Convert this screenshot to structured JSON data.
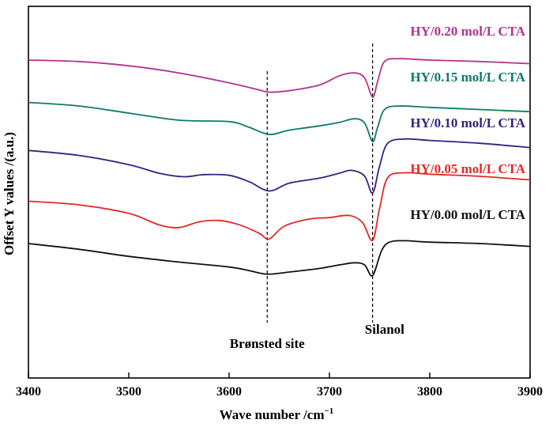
{
  "chart_data": {
    "type": "line",
    "xlabel": "Wave number /cm",
    "xlabel_sup": "−1",
    "ylabel": "Offset Y values /(a.u.)",
    "xlim": [
      3400,
      3900
    ],
    "xticks": [
      "3400",
      "3500",
      "3600",
      "3700",
      "3800",
      "3900"
    ],
    "grid": false,
    "annotations": [
      {
        "text": "Brønsted site",
        "x": 3638
      },
      {
        "text": "Silanol",
        "x": 3743
      }
    ],
    "series": [
      {
        "name": "HY/0.20 mol/L CTA",
        "color": "#b3348f",
        "offset": 4,
        "points": [
          [
            3400,
            0.6
          ],
          [
            3450,
            0.58
          ],
          [
            3500,
            0.52
          ],
          [
            3550,
            0.42
          ],
          [
            3600,
            0.28
          ],
          [
            3630,
            0.18
          ],
          [
            3640,
            0.15
          ],
          [
            3660,
            0.17
          ],
          [
            3690,
            0.25
          ],
          [
            3710,
            0.38
          ],
          [
            3725,
            0.42
          ],
          [
            3735,
            0.35
          ],
          [
            3743,
            0.08
          ],
          [
            3748,
            0.3
          ],
          [
            3755,
            0.58
          ],
          [
            3770,
            0.62
          ],
          [
            3800,
            0.6
          ],
          [
            3850,
            0.58
          ],
          [
            3900,
            0.55
          ]
        ]
      },
      {
        "name": "HY/0.15 mol/L CTA",
        "color": "#0e7a6d",
        "offset": 3,
        "points": [
          [
            3400,
            0.65
          ],
          [
            3450,
            0.6
          ],
          [
            3500,
            0.5
          ],
          [
            3550,
            0.4
          ],
          [
            3600,
            0.38
          ],
          [
            3620,
            0.3
          ],
          [
            3640,
            0.2
          ],
          [
            3660,
            0.26
          ],
          [
            3690,
            0.32
          ],
          [
            3710,
            0.37
          ],
          [
            3725,
            0.42
          ],
          [
            3735,
            0.36
          ],
          [
            3743,
            0.1
          ],
          [
            3748,
            0.3
          ],
          [
            3755,
            0.55
          ],
          [
            3770,
            0.6
          ],
          [
            3800,
            0.58
          ],
          [
            3850,
            0.55
          ],
          [
            3900,
            0.52
          ]
        ]
      },
      {
        "name": "HY/0.10 mol/L CTA",
        "color": "#35237f",
        "offset": 2,
        "points": [
          [
            3400,
            0.62
          ],
          [
            3450,
            0.55
          ],
          [
            3500,
            0.42
          ],
          [
            3530,
            0.3
          ],
          [
            3555,
            0.25
          ],
          [
            3575,
            0.28
          ],
          [
            3600,
            0.27
          ],
          [
            3620,
            0.18
          ],
          [
            3640,
            0.05
          ],
          [
            3660,
            0.16
          ],
          [
            3690,
            0.23
          ],
          [
            3710,
            0.3
          ],
          [
            3722,
            0.34
          ],
          [
            3735,
            0.26
          ],
          [
            3743,
            0.02
          ],
          [
            3750,
            0.4
          ],
          [
            3758,
            0.72
          ],
          [
            3775,
            0.78
          ],
          [
            3800,
            0.76
          ],
          [
            3850,
            0.72
          ],
          [
            3900,
            0.66
          ]
        ]
      },
      {
        "name": "HY/0.05 mol/L CTA",
        "color": "#e02b26",
        "offset": 1,
        "points": [
          [
            3400,
            0.55
          ],
          [
            3450,
            0.5
          ],
          [
            3500,
            0.38
          ],
          [
            3530,
            0.22
          ],
          [
            3550,
            0.18
          ],
          [
            3570,
            0.26
          ],
          [
            3590,
            0.28
          ],
          [
            3610,
            0.22
          ],
          [
            3630,
            0.1
          ],
          [
            3640,
            0.02
          ],
          [
            3655,
            0.2
          ],
          [
            3680,
            0.3
          ],
          [
            3700,
            0.32
          ],
          [
            3720,
            0.35
          ],
          [
            3733,
            0.25
          ],
          [
            3743,
            0.0
          ],
          [
            3750,
            0.45
          ],
          [
            3758,
            0.88
          ],
          [
            3775,
            0.95
          ],
          [
            3800,
            0.93
          ],
          [
            3850,
            0.9
          ],
          [
            3900,
            0.85
          ]
        ]
      },
      {
        "name": "HY/0.00 mol/L CTA",
        "color": "#111111",
        "offset": 0,
        "points": [
          [
            3400,
            0.6
          ],
          [
            3450,
            0.52
          ],
          [
            3500,
            0.42
          ],
          [
            3550,
            0.34
          ],
          [
            3600,
            0.27
          ],
          [
            3620,
            0.22
          ],
          [
            3638,
            0.17
          ],
          [
            3660,
            0.2
          ],
          [
            3690,
            0.25
          ],
          [
            3710,
            0.3
          ],
          [
            3725,
            0.33
          ],
          [
            3735,
            0.3
          ],
          [
            3743,
            0.15
          ],
          [
            3752,
            0.5
          ],
          [
            3760,
            0.62
          ],
          [
            3775,
            0.64
          ],
          [
            3800,
            0.62
          ],
          [
            3850,
            0.6
          ],
          [
            3900,
            0.56
          ]
        ]
      }
    ]
  }
}
